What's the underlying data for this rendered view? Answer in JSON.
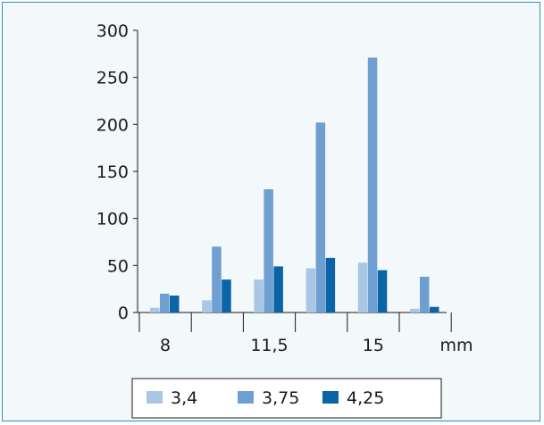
{
  "chart_data": {
    "type": "bar",
    "title": "",
    "xlabel": "",
    "ylabel": "",
    "x_unit": "mm",
    "ylim": [
      0,
      300
    ],
    "y_ticks": [
      0,
      50,
      100,
      150,
      200,
      250,
      300
    ],
    "x_tick_labels": [
      "8",
      "11,5",
      "15"
    ],
    "x_tick_label_groups": [
      0,
      2,
      4
    ],
    "categories": [
      "",
      "",
      "",
      "",
      "",
      ""
    ],
    "series": [
      {
        "name": "3,4",
        "color": "#a9c7e4",
        "values": [
          5,
          13,
          35,
          47,
          53,
          4
        ]
      },
      {
        "name": "3,75",
        "color": "#6f9fd0",
        "values": [
          20,
          70,
          131,
          202,
          271,
          38
        ]
      },
      {
        "name": "4,25",
        "color": "#0b64a8",
        "values": [
          18,
          35,
          49,
          58,
          45,
          6
        ]
      }
    ],
    "grid": false,
    "legend_position": "bottom"
  }
}
